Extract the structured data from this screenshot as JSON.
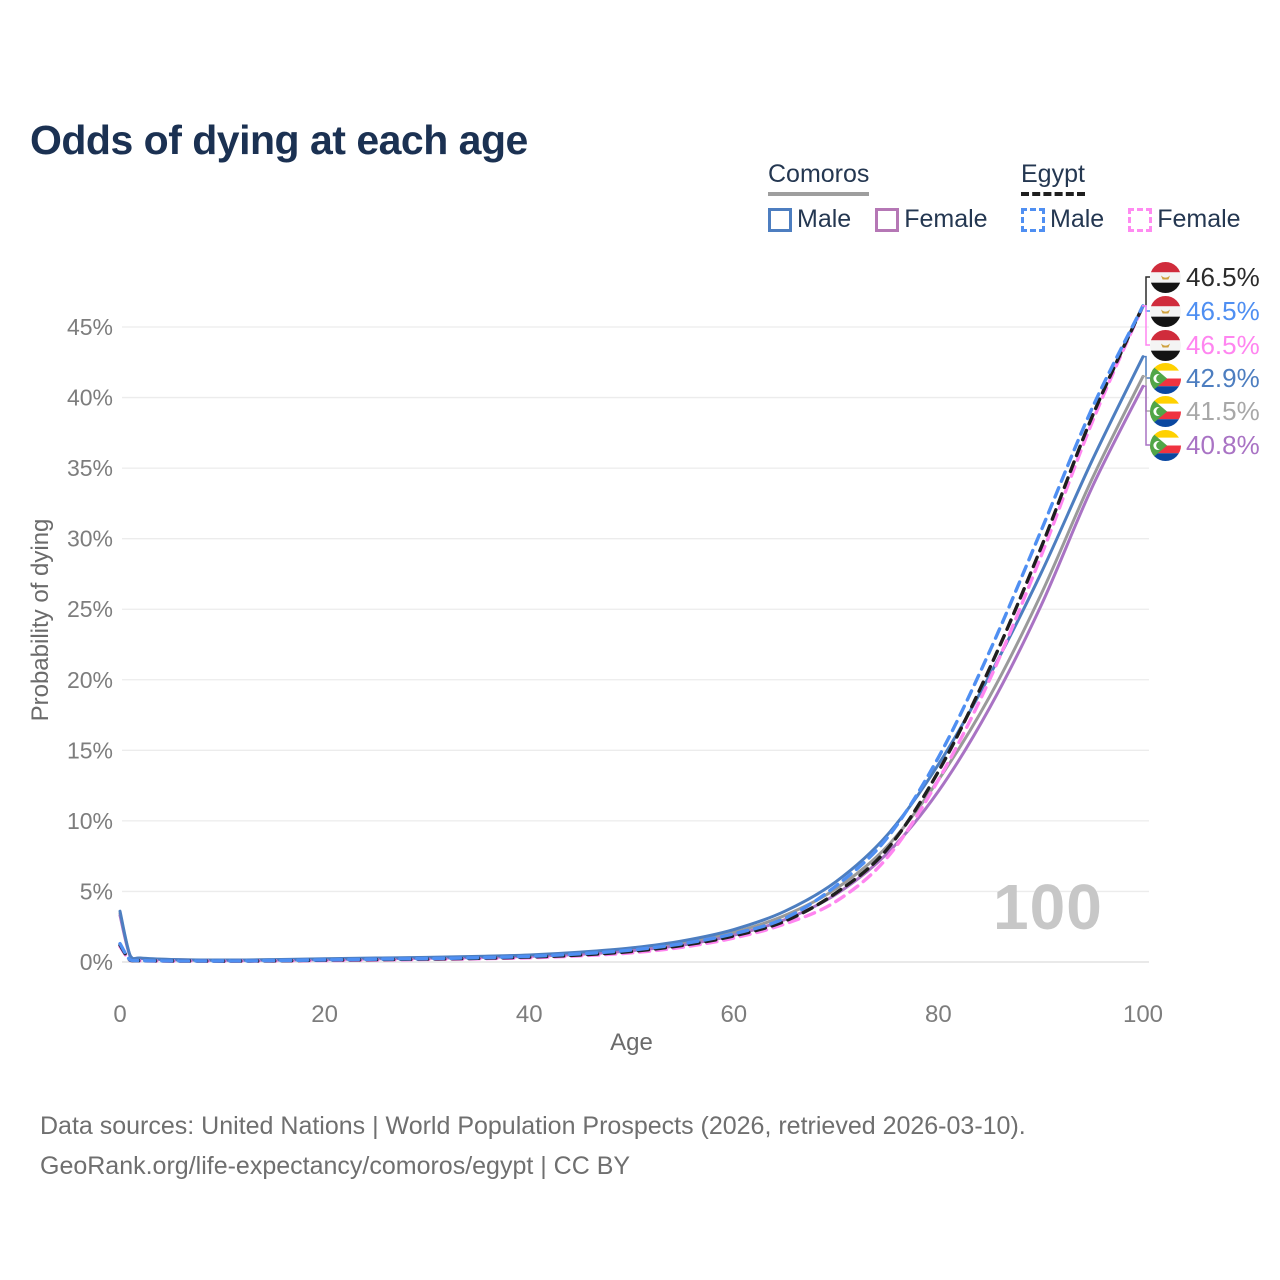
{
  "title": "Odds of dying at each age",
  "legend": {
    "groups": [
      {
        "country": "Comoros",
        "line_style": "solid",
        "underline_color": "#9e9e9e",
        "items": [
          {
            "label": "Male",
            "color": "#4d7ec0"
          },
          {
            "label": "Female",
            "color": "#b577b5"
          }
        ]
      },
      {
        "country": "Egypt",
        "line_style": "dashed",
        "underline_color": "#1f1f1f",
        "items": [
          {
            "label": "Male",
            "color": "#4f8ff2"
          },
          {
            "label": "Female",
            "color": "#ff8af1"
          }
        ]
      }
    ]
  },
  "end_labels": [
    {
      "series": "Egypt both sexes",
      "value": "46.5%",
      "color": "#2b2b2b",
      "flag": "egypt"
    },
    {
      "series": "Egypt male",
      "value": "46.5%",
      "color": "#4f8ff2",
      "flag": "egypt"
    },
    {
      "series": "Egypt female",
      "value": "46.5%",
      "color": "#ff85f0",
      "flag": "egypt"
    },
    {
      "series": "Comoros male",
      "value": "42.9%",
      "color": "#4d7ec0",
      "flag": "comoros"
    },
    {
      "series": "Comoros both sexes",
      "value": "41.5%",
      "color": "#a8a8a8",
      "flag": "comoros"
    },
    {
      "series": "Comoros female",
      "value": "40.8%",
      "color": "#a973c4",
      "flag": "comoros"
    }
  ],
  "watermark": "100",
  "footer": {
    "line1": "Data sources: United Nations | World Population Prospects (2026, retrieved 2026-03-10).",
    "line2": "GeoRank.org/life-expectancy/comoros/egypt | CC BY"
  },
  "chart_data": {
    "type": "line",
    "title": "Odds of dying at each age",
    "xlabel": "Age",
    "ylabel": "Probability of dying",
    "xlim": [
      0,
      100
    ],
    "ylim_pct": [
      0,
      47
    ],
    "grid": "horizontal",
    "legend_position": "top-right",
    "x_ticks": [
      0,
      20,
      40,
      60,
      80,
      100
    ],
    "y_ticks": [
      "0%",
      "5%",
      "10%",
      "15%",
      "20%",
      "25%",
      "30%",
      "35%",
      "40%",
      "45%"
    ],
    "x": [
      0,
      1,
      2,
      5,
      10,
      15,
      20,
      25,
      30,
      35,
      40,
      45,
      50,
      55,
      60,
      65,
      70,
      75,
      80,
      85,
      90,
      95,
      100
    ],
    "series": [
      {
        "name": "Comoros both sexes",
        "country": "Comoros",
        "sex": "both",
        "color": "#9a9a9a",
        "dash": false,
        "end_label": "41.5%",
        "values": [
          3.45,
          0.42,
          0.26,
          0.17,
          0.13,
          0.15,
          0.2,
          0.25,
          0.3,
          0.36,
          0.45,
          0.63,
          0.9,
          1.35,
          2.1,
          3.3,
          5.2,
          8.2,
          12.9,
          18.8,
          26.0,
          34.2,
          41.5
        ]
      },
      {
        "name": "Comoros female",
        "country": "Comoros",
        "sex": "female",
        "color": "#a973c4",
        "dash": false,
        "end_label": "40.8%",
        "values": [
          3.3,
          0.4,
          0.25,
          0.16,
          0.12,
          0.13,
          0.17,
          0.22,
          0.27,
          0.32,
          0.4,
          0.55,
          0.8,
          1.2,
          1.9,
          3.0,
          4.8,
          7.7,
          12.1,
          18.0,
          25.2,
          33.6,
          40.8
        ]
      },
      {
        "name": "Comoros male",
        "country": "Comoros",
        "sex": "male",
        "color": "#4d7ec0",
        "dash": false,
        "end_label": "42.9%",
        "values": [
          3.6,
          0.45,
          0.28,
          0.18,
          0.14,
          0.17,
          0.23,
          0.28,
          0.33,
          0.4,
          0.5,
          0.7,
          1.0,
          1.5,
          2.3,
          3.6,
          5.7,
          9.0,
          14.0,
          20.3,
          27.5,
          35.5,
          42.9
        ]
      },
      {
        "name": "Egypt female",
        "country": "Egypt",
        "sex": "female",
        "color": "#ff85f0",
        "dash": true,
        "end_label": "46.5%",
        "values": [
          1.1,
          0.11,
          0.08,
          0.06,
          0.05,
          0.07,
          0.1,
          0.14,
          0.18,
          0.23,
          0.3,
          0.44,
          0.65,
          1.05,
          1.7,
          2.7,
          4.3,
          7.4,
          12.9,
          20.0,
          28.7,
          38.2,
          46.5
        ]
      },
      {
        "name": "Egypt both sexes",
        "country": "Egypt",
        "sex": "both",
        "color": "#1f1f1f",
        "dash": true,
        "end_label": "46.5%",
        "values": [
          1.2,
          0.12,
          0.09,
          0.07,
          0.06,
          0.08,
          0.13,
          0.17,
          0.21,
          0.26,
          0.35,
          0.5,
          0.75,
          1.18,
          1.85,
          2.9,
          4.9,
          8.0,
          13.5,
          20.8,
          29.3,
          38.6,
          46.5
        ]
      },
      {
        "name": "Egypt male",
        "country": "Egypt",
        "sex": "male",
        "color": "#4f8ff2",
        "dash": true,
        "end_label": "46.5%",
        "values": [
          1.3,
          0.14,
          0.1,
          0.08,
          0.07,
          0.1,
          0.15,
          0.2,
          0.24,
          0.3,
          0.4,
          0.58,
          0.85,
          1.3,
          2.0,
          3.1,
          5.4,
          8.8,
          14.5,
          22.0,
          30.5,
          39.2,
          46.5
        ]
      }
    ]
  }
}
